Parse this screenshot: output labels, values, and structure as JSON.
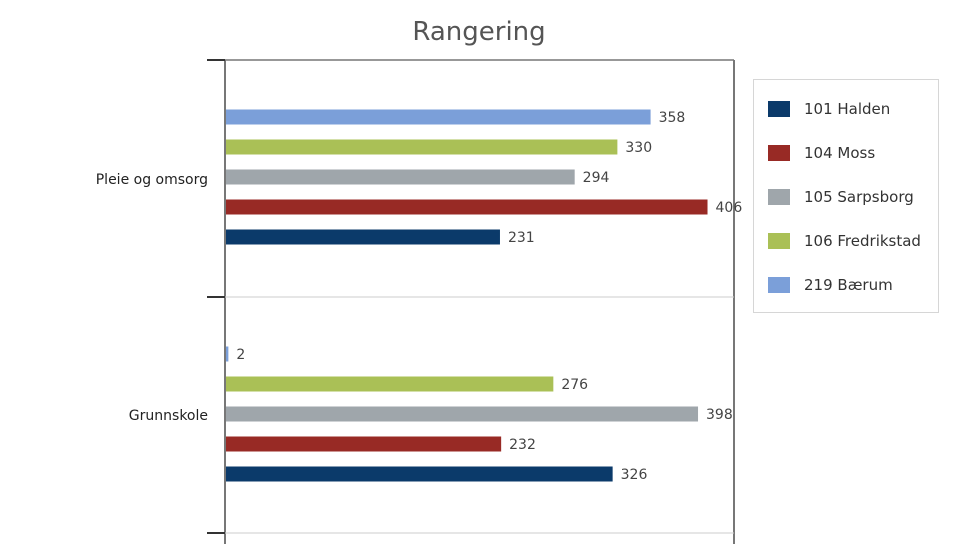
{
  "chart_data": {
    "type": "bar",
    "orientation": "horizontal",
    "title": "Rangering",
    "categories": [
      "Pleie og omsorg",
      "Grunnskole"
    ],
    "xlim": [
      0,
      410
    ],
    "series": [
      {
        "name": "101 Halden",
        "color": "#0b3a6a",
        "values": [
          231,
          326
        ]
      },
      {
        "name": "104 Moss",
        "color": "#982a25",
        "values": [
          406,
          232
        ]
      },
      {
        "name": "105 Sarpsborg",
        "color": "#9fa6ab",
        "values": [
          294,
          398
        ]
      },
      {
        "name": "106 Fredrikstad",
        "color": "#aac056",
        "values": [
          330,
          276
        ]
      },
      {
        "name": "219 Bærum",
        "color": "#7b9fd9",
        "values": [
          358,
          2
        ]
      }
    ],
    "legend_position": "right",
    "grid": false
  }
}
